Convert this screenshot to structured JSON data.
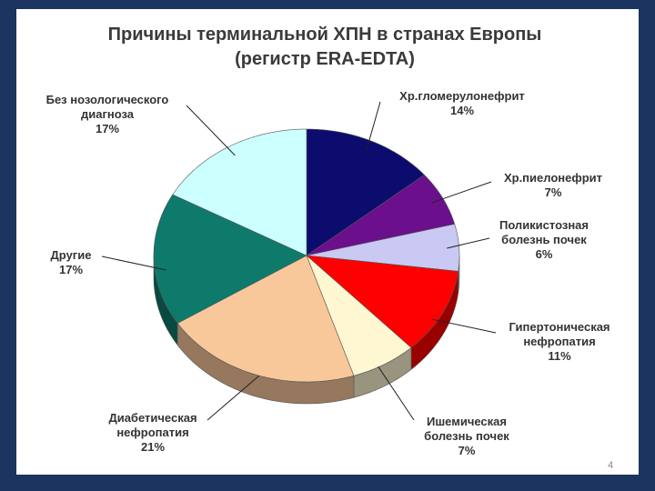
{
  "chart_data": {
    "type": "pie",
    "title": "Причины терминальной ХПН в странах Европы",
    "subtitle": "(регистр ERA-EDTA)",
    "categories": [
      "Хр.гломерулонефрит",
      "Хр.пиелонефрит",
      "Поликистозная болезнь почек",
      "Гипертоническая нефропатия",
      "Ишемическая болезнь почек",
      "Диабетическая нефропатия",
      "Другие",
      "Без нозологического диагноза"
    ],
    "values": [
      14,
      7,
      6,
      11,
      7,
      21,
      17,
      17
    ],
    "value_labels": [
      "14%",
      "7%",
      "6%",
      "11%",
      "7%",
      "21%",
      "17%",
      "17%"
    ],
    "colors": [
      "#0c0c6e",
      "#6b0f8c",
      "#c9c9f3",
      "#ff0000",
      "#fff7d2",
      "#f8c89b",
      "#0d7a6c",
      "#ccffff"
    ]
  },
  "slide": {
    "page_number": "4"
  }
}
